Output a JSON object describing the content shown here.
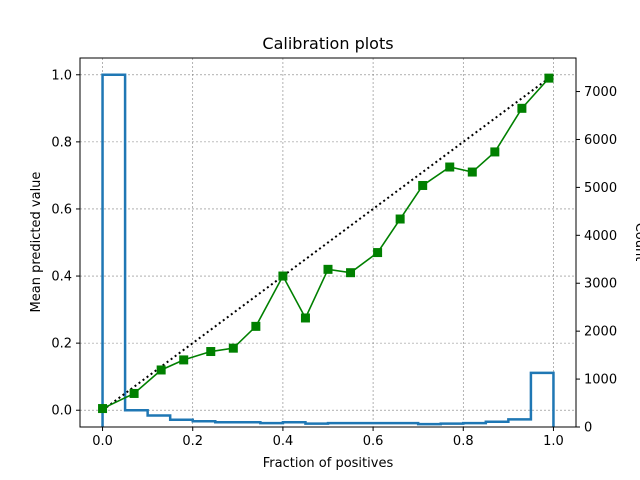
{
  "chart_data": {
    "type": "line",
    "title": "Calibration plots",
    "xlabel": "Fraction of positives",
    "ylabel": "Mean predicted value",
    "y2label": "Count",
    "xlim": [
      -0.05,
      1.05
    ],
    "ylim": [
      -0.05,
      1.05
    ],
    "y2lim": [
      0,
      7700
    ],
    "grid": true,
    "grid_color": "#808080",
    "x_ticks": [
      0.0,
      0.2,
      0.4,
      0.6,
      0.8,
      1.0
    ],
    "x_tick_labels": [
      "0.0",
      "0.2",
      "0.4",
      "0.6",
      "0.8",
      "1.0"
    ],
    "y_ticks": [
      0.0,
      0.2,
      0.4,
      0.6,
      0.8,
      1.0
    ],
    "y_tick_labels": [
      "0.0",
      "0.2",
      "0.4",
      "0.6",
      "0.8",
      "1.0"
    ],
    "y2_ticks": [
      0,
      1000,
      2000,
      3000,
      4000,
      5000,
      6000,
      7000
    ],
    "y2_tick_labels": [
      "0",
      "1000",
      "2000",
      "3000",
      "4000",
      "5000",
      "6000",
      "7000"
    ],
    "reference_line": {
      "x": [
        0,
        1
      ],
      "y": [
        0,
        1
      ],
      "color": "#000000",
      "style": "dotted"
    },
    "calibration": {
      "color": "#008000",
      "marker": "square",
      "x": [
        0.0,
        0.07,
        0.13,
        0.18,
        0.24,
        0.29,
        0.34,
        0.4,
        0.45,
        0.5,
        0.55,
        0.61,
        0.66,
        0.71,
        0.77,
        0.82,
        0.87,
        0.93,
        0.99
      ],
      "y": [
        0.005,
        0.05,
        0.12,
        0.15,
        0.175,
        0.185,
        0.25,
        0.4,
        0.275,
        0.42,
        0.41,
        0.47,
        0.57,
        0.67,
        0.725,
        0.71,
        0.77,
        0.9,
        0.99
      ]
    },
    "histogram": {
      "color": "#1f77b4",
      "bin_edges": [
        0.0,
        0.05,
        0.1,
        0.15,
        0.2,
        0.25,
        0.3,
        0.35,
        0.4,
        0.45,
        0.5,
        0.55,
        0.6,
        0.65,
        0.7,
        0.75,
        0.8,
        0.85,
        0.9,
        0.95,
        1.0
      ],
      "counts": [
        7350,
        350,
        240,
        150,
        120,
        100,
        100,
        80,
        100,
        70,
        80,
        80,
        80,
        80,
        60,
        70,
        80,
        110,
        160,
        1130
      ]
    }
  }
}
